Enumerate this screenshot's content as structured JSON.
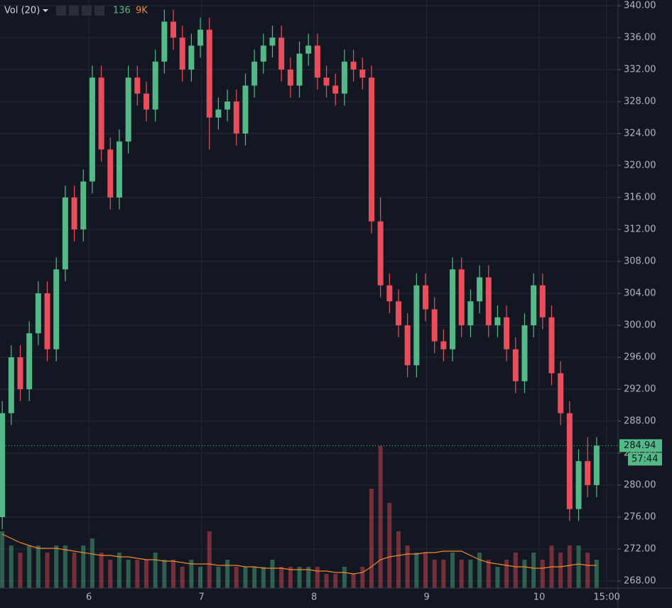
{
  "chart_data": {
    "type": "candlestick",
    "legend": {
      "name": "Vol (20)",
      "values": [
        "136",
        "9K"
      ]
    },
    "up_color": "#53b987",
    "down_color": "#eb4d5c",
    "ma_color": "#f0892e",
    "x": [
      5.23,
      5.31,
      5.39,
      5.47,
      5.55,
      5.63,
      5.71,
      5.79,
      5.87,
      5.95,
      6.03,
      6.11,
      6.19,
      6.27,
      6.35,
      6.43,
      6.51,
      6.59,
      6.67,
      6.75,
      6.83,
      6.91,
      6.99,
      7.07,
      7.15,
      7.23,
      7.31,
      7.39,
      7.47,
      7.55,
      7.63,
      7.71,
      7.79,
      7.87,
      7.95,
      8.03,
      8.11,
      8.19,
      8.27,
      8.35,
      8.43,
      8.51,
      8.59,
      8.67,
      8.75,
      8.83,
      8.91,
      8.99,
      9.07,
      9.15,
      9.23,
      9.31,
      9.39,
      9.47,
      9.55,
      9.63,
      9.71,
      9.79,
      9.87,
      9.95,
      10.03,
      10.11,
      10.19,
      10.27,
      10.35,
      10.43,
      10.51
    ],
    "open": [
      276,
      289,
      296,
      292,
      299,
      304,
      297,
      307,
      316,
      312,
      318,
      331,
      322,
      316,
      323,
      331,
      329,
      327,
      333,
      338,
      336,
      332,
      335,
      337,
      326,
      327,
      328,
      324,
      330,
      333,
      335,
      336,
      332,
      330,
      334,
      335,
      331,
      330,
      329,
      333,
      332,
      331,
      313,
      305,
      303,
      300,
      295,
      305,
      302,
      298,
      297,
      307,
      300,
      303,
      306,
      300,
      301,
      297,
      293,
      300,
      305,
      301,
      294,
      289,
      277,
      283,
      280
    ],
    "high": [
      290.5,
      297.5,
      297.5,
      300.5,
      305.5,
      305.5,
      308.5,
      317.5,
      317.5,
      319.5,
      332.5,
      332.5,
      323.5,
      324.5,
      332.5,
      332.5,
      330.5,
      334.5,
      339.5,
      339.5,
      337.5,
      336.5,
      338.5,
      338.5,
      328.5,
      329.5,
      329.5,
      331.5,
      334.5,
      336.5,
      337.5,
      337.5,
      333.5,
      335.5,
      336.5,
      336.5,
      332.5,
      331.5,
      334.5,
      334.5,
      333.5,
      332.5,
      316,
      306.5,
      304.5,
      301.5,
      306.5,
      306.5,
      303.5,
      299.5,
      308.5,
      308.5,
      304.5,
      307.5,
      307.5,
      302.5,
      302.5,
      298.5,
      301.5,
      306.5,
      306.5,
      302.5,
      295.5,
      290.5,
      284.5,
      286,
      286
    ],
    "low": [
      274.5,
      287.5,
      290.5,
      290.5,
      297.5,
      295.5,
      295.5,
      305.5,
      310.5,
      310.5,
      316.5,
      320.5,
      314.5,
      314.5,
      321.5,
      327.5,
      325.5,
      325.5,
      331.5,
      334.5,
      330.5,
      330.5,
      333.5,
      322,
      324.5,
      325.5,
      322.5,
      322.5,
      328.5,
      331.5,
      333.5,
      330.5,
      328.5,
      328.5,
      332.5,
      329.5,
      328.5,
      327.5,
      327.5,
      330.5,
      329.5,
      311.5,
      303.5,
      301.5,
      298.5,
      293.5,
      293.5,
      300.5,
      296.5,
      295.5,
      295.5,
      298.5,
      298.5,
      301.5,
      298.5,
      298.5,
      295.5,
      291.5,
      291.5,
      298.5,
      299.5,
      292.5,
      287.5,
      275.5,
      275.5,
      278.5,
      278.5
    ],
    "close": [
      289,
      296,
      292,
      299,
      304,
      297,
      307,
      316,
      312,
      318,
      331,
      322,
      316,
      323,
      331,
      329,
      327,
      333,
      338,
      336,
      332,
      335,
      337,
      326,
      327,
      328,
      324,
      330,
      333,
      335,
      336,
      332,
      330,
      334,
      335,
      331,
      330,
      329,
      333,
      332,
      331,
      313,
      305,
      303,
      300,
      295,
      305,
      302,
      298,
      297,
      307,
      300,
      303,
      306,
      300,
      301,
      297,
      293,
      300,
      305,
      301,
      294,
      289,
      277,
      283,
      280,
      284.94
    ],
    "volume": [
      4,
      3,
      2.5,
      3,
      3,
      2.5,
      3,
      3,
      2.5,
      3,
      3.5,
      2.5,
      2,
      2.5,
      2,
      2,
      2,
      2.5,
      2,
      2,
      1.5,
      2,
      1.5,
      4,
      1.5,
      2,
      1.5,
      1.5,
      1.5,
      1.5,
      2,
      1.5,
      1.5,
      1.5,
      1.5,
      1.5,
      1,
      1,
      1.5,
      1,
      1.5,
      7,
      10,
      6,
      4,
      3,
      2.5,
      2.5,
      2,
      2,
      2.5,
      2,
      2,
      2.5,
      2,
      1.5,
      2,
      2.5,
      2,
      2.5,
      2,
      3,
      2.5,
      3,
      3,
      2.5,
      2
    ],
    "volume_ma": [
      3.8,
      3.5,
      3.2,
      3.0,
      2.8,
      2.8,
      2.8,
      2.7,
      2.6,
      2.5,
      2.4,
      2.3,
      2.3,
      2.2,
      2.2,
      2.1,
      2.0,
      2.0,
      1.9,
      1.9,
      1.8,
      1.7,
      1.7,
      1.7,
      1.6,
      1.6,
      1.6,
      1.5,
      1.5,
      1.4,
      1.4,
      1.4,
      1.3,
      1.3,
      1.3,
      1.2,
      1.2,
      1.1,
      1.1,
      1.0,
      1.1,
      1.5,
      2.0,
      2.2,
      2.3,
      2.4,
      2.4,
      2.5,
      2.5,
      2.6,
      2.6,
      2.6,
      2.3,
      2.0,
      1.8,
      1.7,
      1.6,
      1.5,
      1.5,
      1.4,
      1.4,
      1.5,
      1.5,
      1.6,
      1.7,
      1.6,
      1.6
    ],
    "xlim": [
      5.21,
      10.7
    ],
    "xticks": [
      6,
      7,
      8,
      9,
      10,
      {
        "value": 10.6,
        "label": "15:00"
      }
    ],
    "ylim": [
      267.11,
      340.71
    ],
    "yticks": [
      {
        "value": 268,
        "label": "268.00"
      },
      {
        "value": 272,
        "label": "272.00"
      },
      {
        "value": 276,
        "label": "276.00"
      },
      {
        "value": 280,
        "label": "280.00"
      },
      {
        "value": 284,
        "label": "284.00"
      },
      {
        "value": 288,
        "label": "288.00"
      },
      {
        "value": 292,
        "label": "292.00"
      },
      {
        "value": 296,
        "label": "296.00"
      },
      {
        "value": 300,
        "label": "300.00"
      },
      {
        "value": 304,
        "label": "304.00"
      },
      {
        "value": 308,
        "label": "308.00"
      },
      {
        "value": 312,
        "label": "312.00"
      },
      {
        "value": 316,
        "label": "316.00"
      },
      {
        "value": 320,
        "label": "320.00"
      },
      {
        "value": 324,
        "label": "324.00"
      },
      {
        "value": 328,
        "label": "328.00"
      },
      {
        "value": 332,
        "label": "332.00"
      },
      {
        "value": 336,
        "label": "336.00"
      },
      {
        "value": 340,
        "label": "340.00"
      }
    ],
    "grid": true,
    "last_price": 284.94,
    "countdown": "57:44"
  }
}
